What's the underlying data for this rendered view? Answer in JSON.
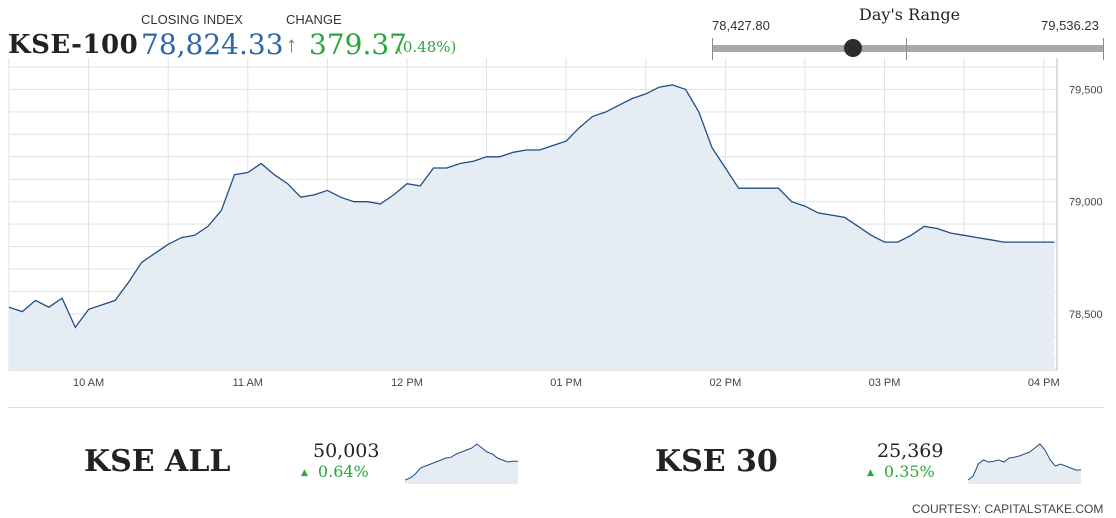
{
  "header": {
    "index_name": "KSE-100",
    "closing_label": "CLOSING INDEX",
    "closing_value": "78,824.33",
    "change_label": "CHANGE",
    "change_value": "379.37",
    "change_pct": "(0.48%)",
    "change_direction_icon": "arrow-up-icon"
  },
  "range": {
    "title": "Day's Range",
    "low": "78,427.80",
    "high": "79,536.23",
    "current_fraction": 0.36
  },
  "colors": {
    "up": "#2aa63d",
    "index_blue": "#2e66a8",
    "line": "#1f4e86",
    "area_fill": "#e6ecf3"
  },
  "chart_data": {
    "type": "area",
    "x_ticks": [
      "10 AM",
      "11 AM",
      "12 PM",
      "01 PM",
      "02 PM",
      "03 PM",
      "04 PM"
    ],
    "y_ticks": [
      "78,500",
      "79,000",
      "79,500"
    ],
    "ylim": [
      78250,
      79640
    ],
    "x_range": [
      "09:30",
      "16:05"
    ],
    "grid": true,
    "series": [
      {
        "x": [
          "09:30",
          "09:35",
          "09:40",
          "09:45",
          "09:50",
          "09:55",
          "10:00",
          "10:05",
          "10:10",
          "10:15",
          "10:20",
          "10:25",
          "10:30",
          "10:35",
          "10:40",
          "10:45",
          "10:50",
          "10:55",
          "11:00",
          "11:05",
          "11:10",
          "11:15",
          "11:20",
          "11:25",
          "11:30",
          "11:35",
          "11:40",
          "11:45",
          "11:50",
          "11:55",
          "12:00",
          "12:05",
          "12:10",
          "12:15",
          "12:20",
          "12:25",
          "12:30",
          "12:35",
          "12:40",
          "12:45",
          "12:50",
          "12:55",
          "13:00",
          "13:05",
          "13:10",
          "13:15",
          "13:20",
          "13:25",
          "13:30",
          "13:35",
          "13:40",
          "13:45",
          "13:50",
          "13:55",
          "14:00",
          "14:05",
          "14:10",
          "14:15",
          "14:20",
          "14:25",
          "14:30",
          "14:35",
          "14:40",
          "14:45",
          "14:50",
          "14:55",
          "15:00",
          "15:05",
          "15:10",
          "15:15",
          "15:20",
          "15:25",
          "15:30",
          "15:35",
          "15:40",
          "15:45",
          "15:50",
          "15:55",
          "16:00"
        ],
        "values": [
          78530,
          78510,
          78560,
          78530,
          78570,
          78440,
          78520,
          78540,
          78560,
          78640,
          78730,
          78770,
          78810,
          78840,
          78850,
          78890,
          78960,
          79120,
          79130,
          79170,
          79120,
          79080,
          79020,
          79030,
          79050,
          79020,
          79000,
          79000,
          78990,
          79030,
          79080,
          79070,
          79150,
          79150,
          79170,
          79180,
          79200,
          79200,
          79220,
          79230,
          79230,
          79250,
          79270,
          79330,
          79380,
          79400,
          79430,
          79460,
          79480,
          79510,
          79520,
          79500,
          79400,
          79240,
          79150,
          79060,
          79060,
          79060,
          79060,
          79000,
          78980,
          78950,
          78940,
          78930,
          78890,
          78850,
          78820,
          78820,
          78850,
          78890,
          78880,
          78860,
          78850,
          78840,
          78830,
          78820,
          78820,
          78820,
          78820
        ]
      }
    ]
  },
  "sub_indices": [
    {
      "name": "KSE ALL",
      "value": "50,003",
      "change": "0.64%",
      "direction_icon": "triangle-up-icon",
      "spark": [
        0.05,
        0.1,
        0.2,
        0.35,
        0.4,
        0.45,
        0.5,
        0.55,
        0.6,
        0.62,
        0.7,
        0.75,
        0.8,
        0.85,
        0.95,
        0.85,
        0.75,
        0.7,
        0.6,
        0.55,
        0.5,
        0.52,
        0.52
      ]
    },
    {
      "name": "KSE 30",
      "value": "25,369",
      "change": "0.35%",
      "direction_icon": "triangle-up-icon",
      "spark": [
        0.05,
        0.15,
        0.45,
        0.55,
        0.5,
        0.52,
        0.55,
        0.5,
        0.6,
        0.62,
        0.65,
        0.7,
        0.75,
        0.85,
        0.95,
        0.8,
        0.55,
        0.4,
        0.45,
        0.4,
        0.35,
        0.3,
        0.3
      ]
    }
  ],
  "footer": {
    "courtesy": "COURTESY: CAPITALSTAKE.COM"
  }
}
